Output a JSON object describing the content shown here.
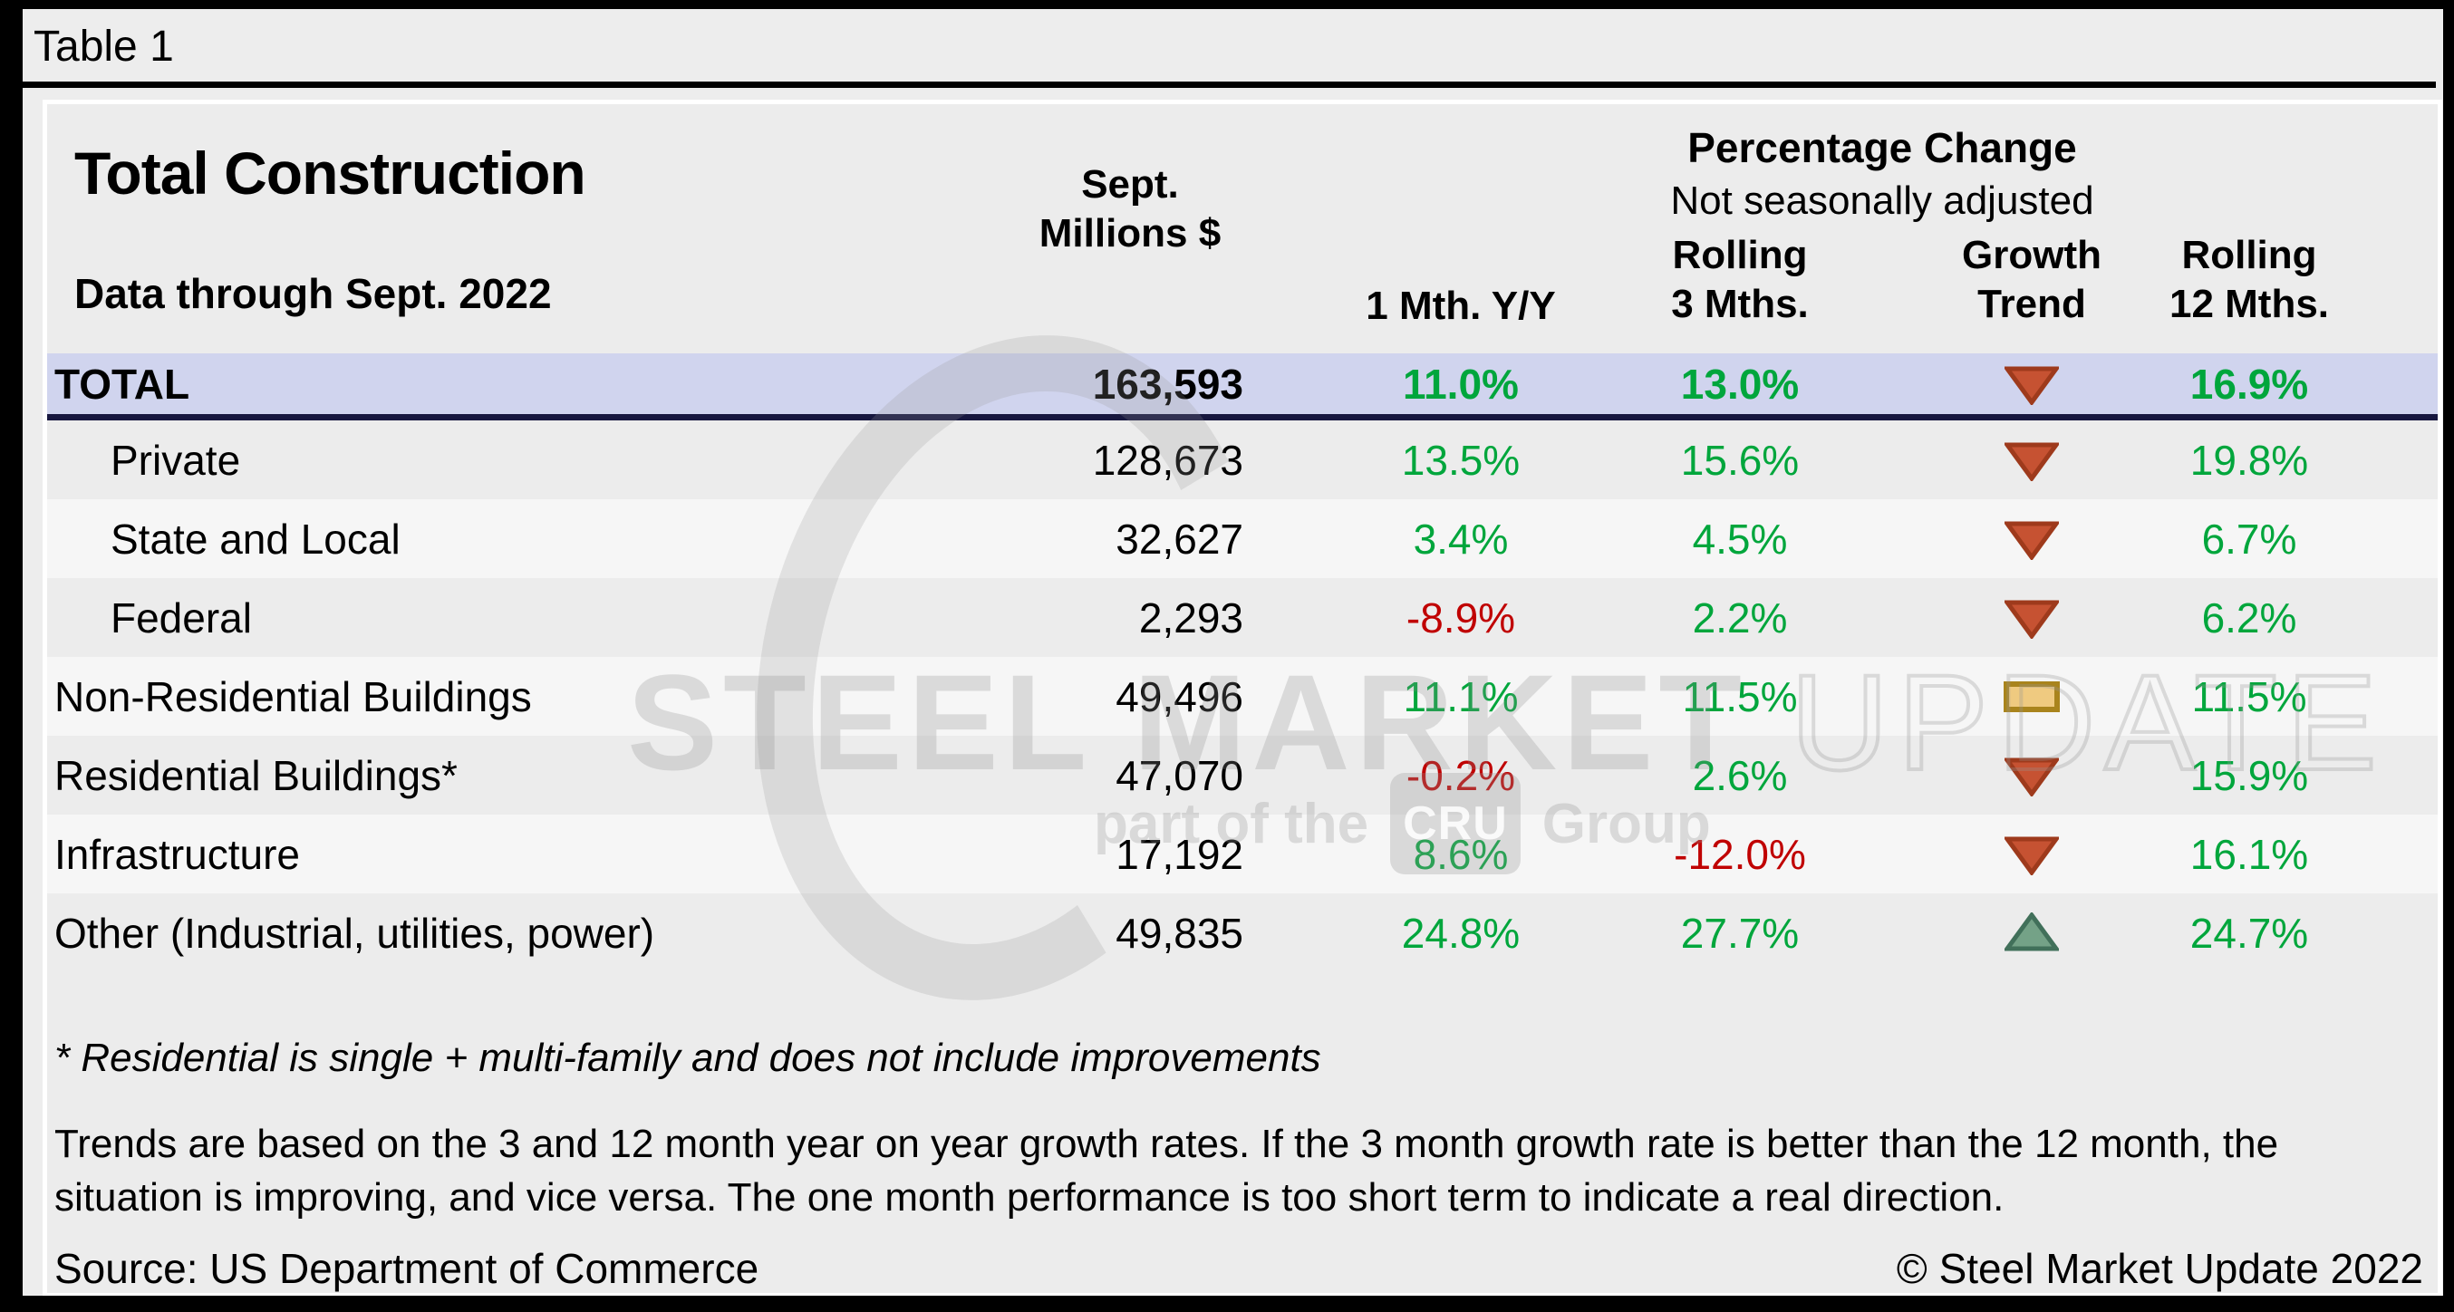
{
  "page": {
    "tag": "Table 1"
  },
  "header": {
    "title": "Total Construction",
    "subtitle": "Data through Sept. 2022",
    "col_millions": "Sept.\nMillions $",
    "pct_change_title": "Percentage Change",
    "pct_change_sub": "Not seasonally adjusted",
    "col_m1": "1 Mth. Y/Y",
    "col_r3": "Rolling\n3 Mths.",
    "col_trend": "Growth\nTrend",
    "col_r12": "Rolling\n12 Mths."
  },
  "chart_data": {
    "type": "table",
    "title": "Total Construction",
    "subtitle": "Data through Sept. 2022",
    "columns": [
      "",
      "Sept. Millions $",
      "1 Mth. Y/Y",
      "Rolling 3 Mths.",
      "Growth Trend",
      "Rolling 12 Mths."
    ],
    "rows": [
      {
        "label": "TOTAL",
        "indent": false,
        "total": true,
        "shade": "total",
        "millions": "163,593",
        "m1": "11.0%",
        "r3": "13.0%",
        "trend": "down",
        "r12": "16.9%"
      },
      {
        "label": "Private",
        "indent": true,
        "total": false,
        "shade": "gray",
        "millions": "128,673",
        "m1": "13.5%",
        "r3": "15.6%",
        "trend": "down",
        "r12": "19.8%"
      },
      {
        "label": "State and Local",
        "indent": true,
        "total": false,
        "shade": "light",
        "millions": "32,627",
        "m1": "3.4%",
        "r3": "4.5%",
        "trend": "down",
        "r12": "6.7%"
      },
      {
        "label": "Federal",
        "indent": true,
        "total": false,
        "shade": "gray",
        "millions": "2,293",
        "m1": "-8.9%",
        "r3": "2.2%",
        "trend": "down",
        "r12": "6.2%"
      },
      {
        "label": "Non-Residential Buildings",
        "indent": false,
        "total": false,
        "shade": "light",
        "millions": "49,496",
        "m1": "11.1%",
        "r3": "11.5%",
        "trend": "flat",
        "r12": "11.5%"
      },
      {
        "label": "Residential Buildings*",
        "indent": false,
        "total": false,
        "shade": "gray",
        "millions": "47,070",
        "m1": "-0.2%",
        "r3": "2.6%",
        "trend": "down",
        "r12": "15.9%"
      },
      {
        "label": "Infrastructure",
        "indent": false,
        "total": false,
        "shade": "light",
        "millions": "17,192",
        "m1": "8.6%",
        "r3": "-12.0%",
        "trend": "down",
        "r12": "16.1%"
      },
      {
        "label": "Other (Industrial, utilities, power)",
        "indent": false,
        "total": false,
        "shade": "gray",
        "millions": "49,835",
        "m1": "24.8%",
        "r3": "27.7%",
        "trend": "up",
        "r12": "24.7%"
      }
    ],
    "trend_legend": {
      "down": "red down triangle",
      "flat": "gold flat bar",
      "up": "green up triangle"
    }
  },
  "footnotes": {
    "residential": "* Residential is single + multi-family and does not include improvements",
    "trends": "Trends are based on the 3 and 12 month year on year growth rates. If the 3 month growth rate is better than the 12 month, the situation is improving, and vice versa. The one month performance is too short term to indicate a real direction.",
    "source": "Source: US Department of Commerce",
    "copyright": "© Steel Market Update 2022"
  },
  "watermark": {
    "brand_solid": "STEEL MARKET",
    "brand_outline": "UPDATE",
    "tagline_pre": "part of the",
    "tagline_box": "CRU",
    "tagline_post": "Group"
  },
  "colors": {
    "positive": "#00a63c",
    "negative": "#c00000",
    "total_row_bg": "#d0d4ee",
    "total_row_border": "#17173f",
    "row_light": "#f6f6f6",
    "row_gray": "#ececec",
    "trend_down_fill": "#c65232",
    "trend_down_stroke": "#9e3a1c",
    "trend_flat_fill": "#efca80",
    "trend_flat_stroke": "#a9841d",
    "trend_up_fill": "#74a287",
    "trend_up_stroke": "#41705a"
  }
}
